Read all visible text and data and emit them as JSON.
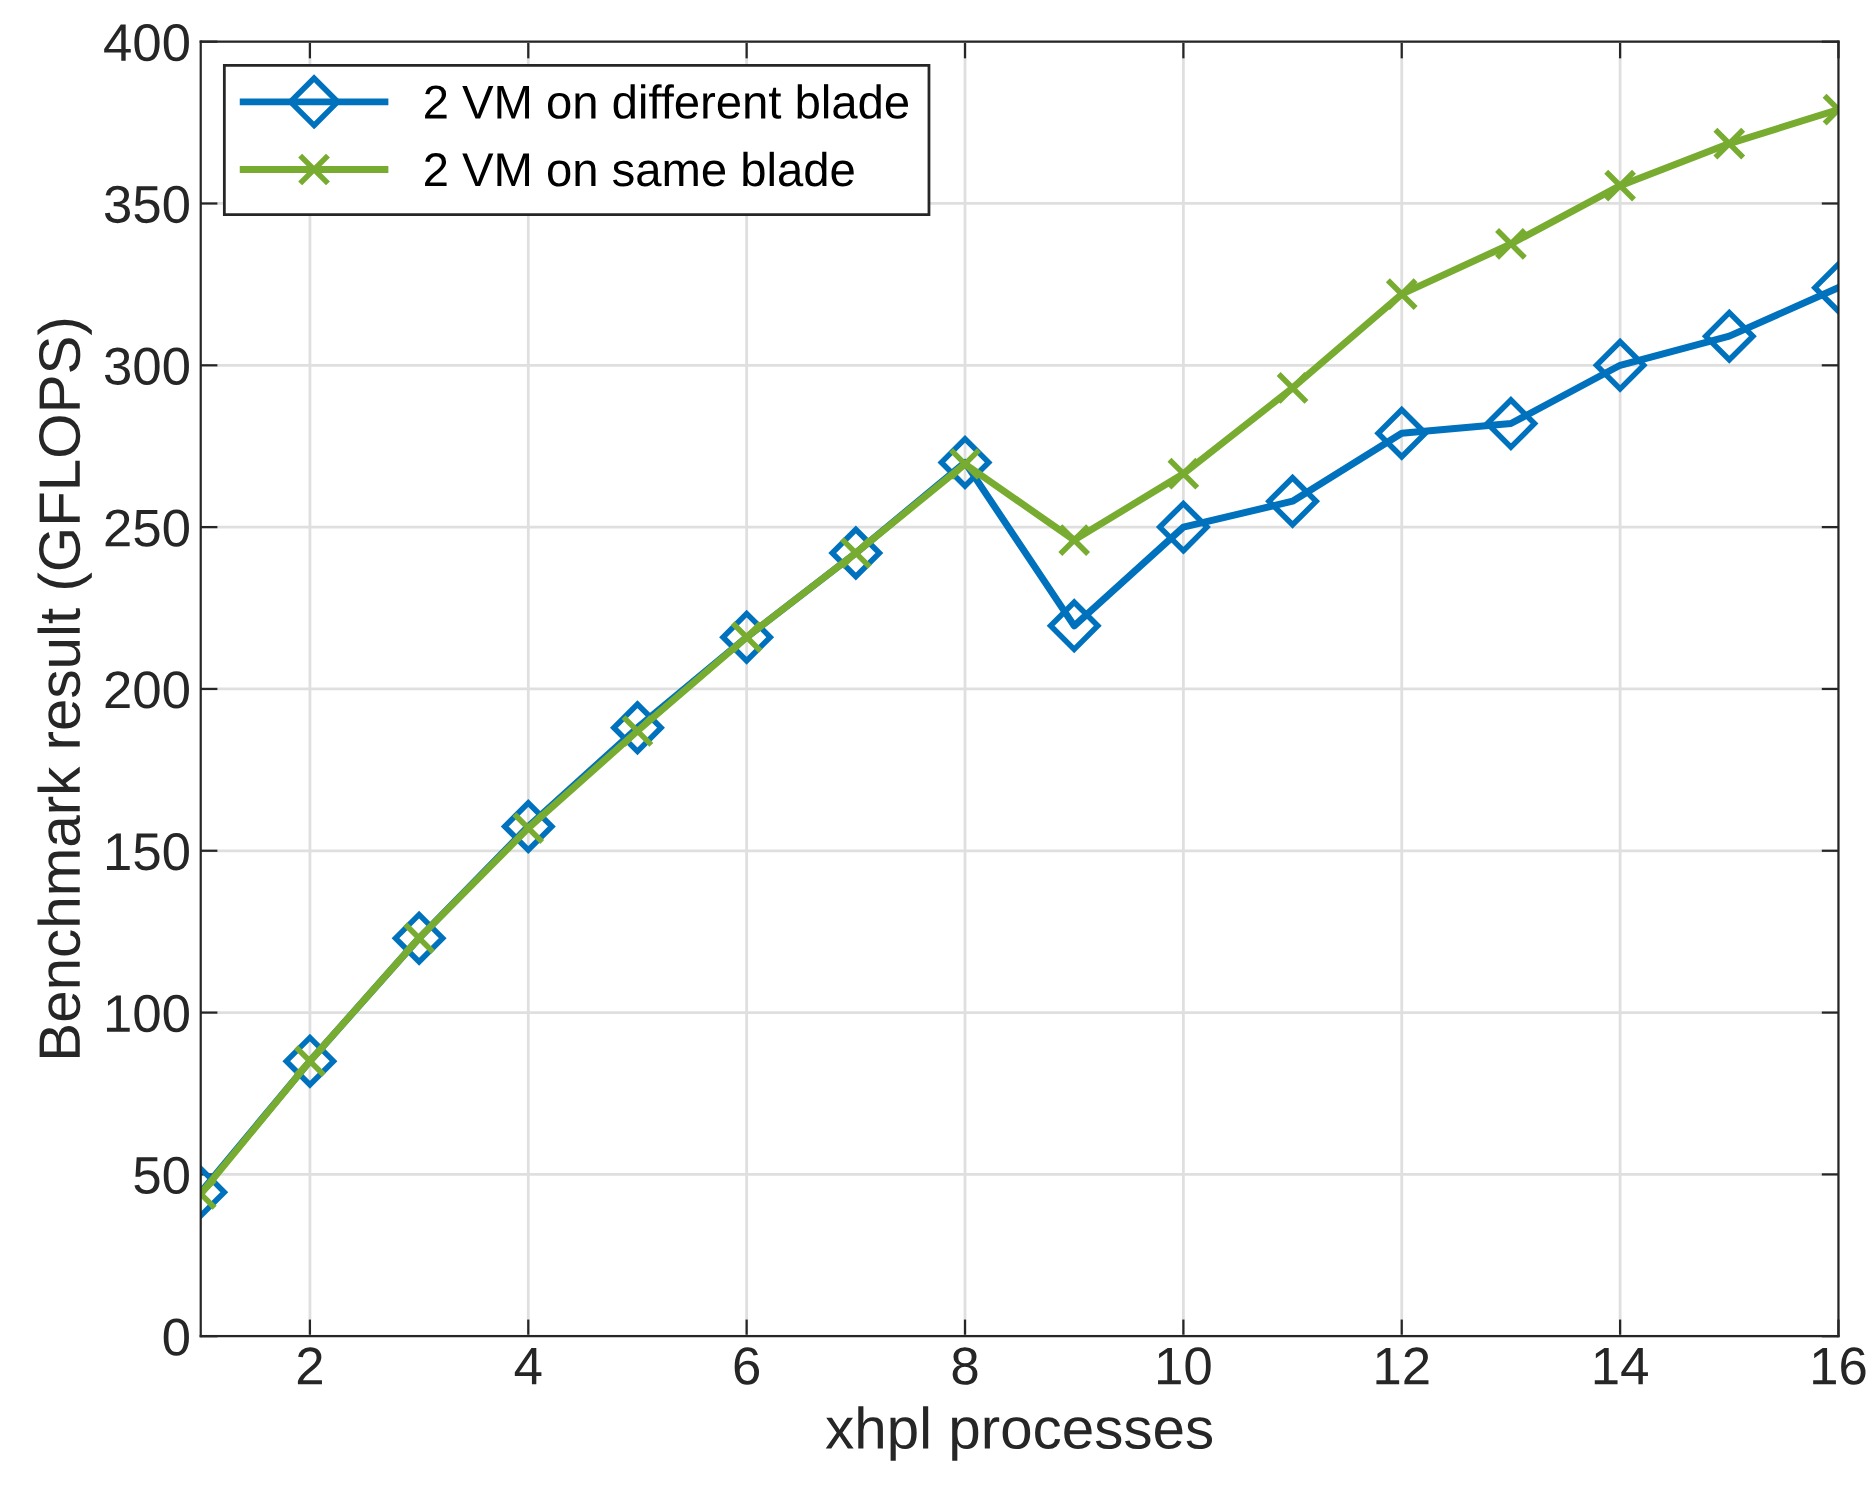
{
  "chart_data": {
    "type": "line",
    "xlabel": "xhpl processes",
    "ylabel": "Benchmark result (GFLOPS)",
    "x": [
      1,
      2,
      3,
      4,
      5,
      6,
      7,
      8,
      9,
      10,
      11,
      12,
      13,
      14,
      15,
      16
    ],
    "series": [
      {
        "name": "2 VM on different blade",
        "color": "#0072bd",
        "marker": "diamond",
        "values": [
          44.5,
          85,
          123,
          157.5,
          188,
          216,
          242,
          270,
          219.5,
          250,
          258,
          279,
          282,
          300,
          309,
          324
        ]
      },
      {
        "name": "2 VM on same blade",
        "color": "#77ac30",
        "marker": "cross",
        "values": [
          44,
          85,
          123,
          157,
          187,
          216,
          242,
          269.5,
          246,
          266.5,
          293,
          322,
          337.5,
          355.5,
          368.5,
          379
        ]
      }
    ],
    "xlim": [
      1,
      16
    ],
    "xticks": [
      2,
      4,
      6,
      8,
      10,
      12,
      14,
      16
    ],
    "ylim": [
      0,
      400
    ],
    "yticks": [
      0,
      50,
      100,
      150,
      200,
      250,
      300,
      350,
      400
    ],
    "grid": true,
    "legend": "top left",
    "line_style": "solid"
  }
}
